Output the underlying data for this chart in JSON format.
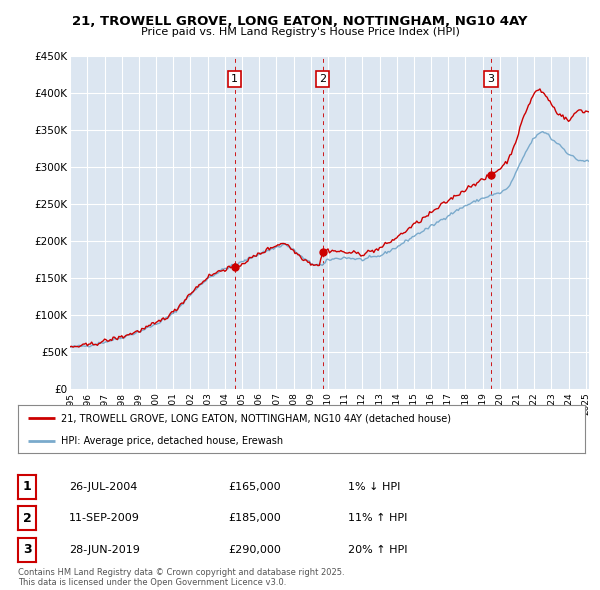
{
  "title_line1": "21, TROWELL GROVE, LONG EATON, NOTTINGHAM, NG10 4AY",
  "title_line2": "Price paid vs. HM Land Registry's House Price Index (HPI)",
  "background_color": "#ffffff",
  "plot_bg_color": "#dce6f1",
  "grid_color": "#ffffff",
  "red_line_color": "#cc0000",
  "blue_line_color": "#7aaacc",
  "ylim": [
    0,
    450000
  ],
  "yticks": [
    0,
    50000,
    100000,
    150000,
    200000,
    250000,
    300000,
    350000,
    400000,
    450000
  ],
  "ytick_labels": [
    "£0",
    "£50K",
    "£100K",
    "£150K",
    "£200K",
    "£250K",
    "£300K",
    "£350K",
    "£400K",
    "£450K"
  ],
  "sales": [
    {
      "num": 1,
      "date_num": 2004.57,
      "price": 165000,
      "label": "26-JUL-2004",
      "price_str": "£165,000",
      "hpi_str": "1% ↓ HPI"
    },
    {
      "num": 2,
      "date_num": 2009.7,
      "price": 185000,
      "label": "11-SEP-2009",
      "price_str": "£185,000",
      "hpi_str": "11% ↑ HPI"
    },
    {
      "num": 3,
      "date_num": 2019.49,
      "price": 290000,
      "label": "28-JUN-2019",
      "price_str": "£290,000",
      "hpi_str": "20% ↑ HPI"
    }
  ],
  "legend_red": "21, TROWELL GROVE, LONG EATON, NOTTINGHAM, NG10 4AY (detached house)",
  "legend_blue": "HPI: Average price, detached house, Erewash",
  "footnote": "Contains HM Land Registry data © Crown copyright and database right 2025.\nThis data is licensed under the Open Government Licence v3.0."
}
